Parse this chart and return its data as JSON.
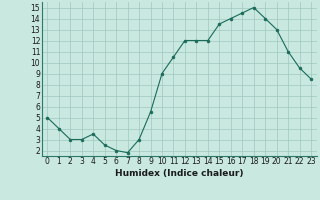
{
  "x": [
    0,
    1,
    2,
    3,
    4,
    5,
    6,
    7,
    8,
    9,
    10,
    11,
    12,
    13,
    14,
    15,
    16,
    17,
    18,
    19,
    20,
    21,
    22,
    23
  ],
  "y": [
    5.0,
    4.0,
    3.0,
    3.0,
    3.5,
    2.5,
    2.0,
    1.8,
    3.0,
    5.5,
    9.0,
    10.5,
    12.0,
    12.0,
    12.0,
    13.5,
    14.0,
    14.5,
    15.0,
    14.0,
    13.0,
    11.0,
    9.5,
    8.5
  ],
  "line_color": "#1a6b5a",
  "marker_color": "#1a6b5a",
  "bg_color": "#c8e8e0",
  "grid_major_color": "#a0c8c0",
  "grid_minor_color": "#b8d8d0",
  "axis_label_color": "#1a1a1a",
  "xlabel": "Humidex (Indice chaleur)",
  "xlim": [
    -0.5,
    23.5
  ],
  "ylim": [
    1.5,
    15.5
  ],
  "yticks": [
    2,
    3,
    4,
    5,
    6,
    7,
    8,
    9,
    10,
    11,
    12,
    13,
    14,
    15
  ],
  "xticks": [
    0,
    1,
    2,
    3,
    4,
    5,
    6,
    7,
    8,
    9,
    10,
    11,
    12,
    13,
    14,
    15,
    16,
    17,
    18,
    19,
    20,
    21,
    22,
    23
  ],
  "font_size_label": 6.5,
  "font_size_tick": 5.5
}
